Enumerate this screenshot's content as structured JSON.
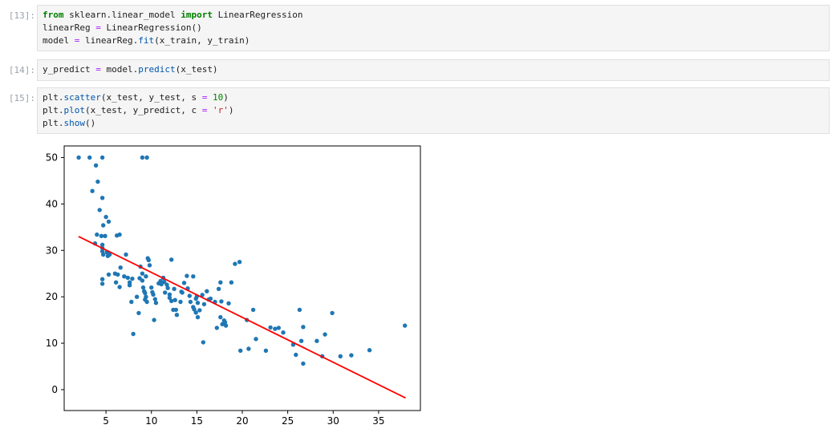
{
  "cells": [
    {
      "prompt": "[13]:",
      "lines": [
        [
          [
            "kw",
            "from"
          ],
          [
            "t",
            " sklearn.linear_model "
          ],
          [
            "kw",
            "import"
          ],
          [
            "t",
            " LinearRegression"
          ]
        ],
        [
          [
            "t",
            "linearReg "
          ],
          [
            "op",
            "="
          ],
          [
            "t",
            " LinearRegression()"
          ]
        ],
        [
          [
            "t",
            "model "
          ],
          [
            "op",
            "="
          ],
          [
            "t",
            " linearReg."
          ],
          [
            "fn",
            "fit"
          ],
          [
            "t",
            "(x_train, y_train)"
          ]
        ]
      ]
    },
    {
      "prompt": "[14]:",
      "lines": [
        [
          [
            "t",
            "y_predict "
          ],
          [
            "op",
            "="
          ],
          [
            "t",
            " model."
          ],
          [
            "fn",
            "predict"
          ],
          [
            "t",
            "(x_test)"
          ]
        ]
      ]
    },
    {
      "prompt": "[15]:",
      "lines": [
        [
          [
            "t",
            "plt."
          ],
          [
            "fn",
            "scatter"
          ],
          [
            "t",
            "(x_test, y_test, s "
          ],
          [
            "op",
            "="
          ],
          [
            "t",
            " "
          ],
          [
            "num",
            "10"
          ],
          [
            "t",
            ")"
          ]
        ],
        [
          [
            "t",
            "plt."
          ],
          [
            "fn",
            "plot"
          ],
          [
            "t",
            "(x_test, y_predict, c "
          ],
          [
            "op",
            "="
          ],
          [
            "t",
            " "
          ],
          [
            "str",
            "'r'"
          ],
          [
            "t",
            ")"
          ]
        ],
        [
          [
            "t",
            "plt."
          ],
          [
            "fn",
            "show"
          ],
          [
            "t",
            "()"
          ]
        ]
      ]
    }
  ],
  "chart_data": {
    "type": "scatter",
    "xlim": [
      0.4,
      39.6
    ],
    "ylim": [
      -4.5,
      52.5
    ],
    "xticks": [
      5,
      10,
      15,
      20,
      25,
      30,
      35
    ],
    "yticks": [
      0,
      10,
      20,
      30,
      40,
      50
    ],
    "grid": false,
    "colors": {
      "points": "#1f77b4",
      "line": "#ff0000"
    },
    "series": [
      {
        "kind": "scatter",
        "points": [
          [
            2,
            50
          ],
          [
            3.2,
            50
          ],
          [
            4.6,
            50
          ],
          [
            9,
            50
          ],
          [
            9.5,
            50
          ],
          [
            3.9,
            48.3
          ],
          [
            4.1,
            44.8
          ],
          [
            3.5,
            42.8
          ],
          [
            4.6,
            41.3
          ],
          [
            4.3,
            38.7
          ],
          [
            5,
            37.2
          ],
          [
            5.3,
            36.2
          ],
          [
            4.7,
            35.4
          ],
          [
            4,
            33.4
          ],
          [
            4.5,
            33.1
          ],
          [
            4.9,
            33.1
          ],
          [
            6.2,
            33.2
          ],
          [
            6.5,
            33.4
          ],
          [
            3.8,
            31.5
          ],
          [
            4.6,
            31.2
          ],
          [
            4.6,
            30.5
          ],
          [
            4.6,
            29.8
          ],
          [
            5.1,
            29.6
          ],
          [
            4.7,
            29.1
          ],
          [
            5.2,
            28.8
          ],
          [
            5.4,
            29.1
          ],
          [
            7.2,
            29.1
          ],
          [
            4.6,
            23.8
          ],
          [
            4.6,
            22.8
          ],
          [
            5.3,
            24.8
          ],
          [
            6,
            25
          ],
          [
            6.3,
            24.8
          ],
          [
            6.1,
            23.1
          ],
          [
            6.5,
            22.1
          ],
          [
            6.6,
            26.3
          ],
          [
            7,
            24.4
          ],
          [
            7.4,
            24.1
          ],
          [
            7.6,
            23.1
          ],
          [
            7.6,
            22.5
          ],
          [
            7.9,
            23.9
          ],
          [
            7.8,
            18.9
          ],
          [
            8,
            12
          ],
          [
            8.4,
            20
          ],
          [
            8.6,
            16.5
          ],
          [
            8.7,
            24
          ],
          [
            8.8,
            26.5
          ],
          [
            9,
            25
          ],
          [
            9,
            23.5
          ],
          [
            9.1,
            22
          ],
          [
            9.2,
            21.2
          ],
          [
            9.3,
            20.8
          ],
          [
            9.4,
            20
          ],
          [
            9.3,
            19.4
          ],
          [
            9.5,
            18.9
          ],
          [
            9.6,
            28.3
          ],
          [
            9.7,
            27.9
          ],
          [
            9.8,
            26.8
          ],
          [
            9.4,
            24.4
          ],
          [
            10,
            22
          ],
          [
            10.1,
            21
          ],
          [
            10.2,
            20.5
          ],
          [
            10.3,
            15
          ],
          [
            10.4,
            19.5
          ],
          [
            10.5,
            18.7
          ],
          [
            10.8,
            22.9
          ],
          [
            11,
            23.4
          ],
          [
            11.1,
            22.7
          ],
          [
            11.3,
            24.1
          ],
          [
            11.4,
            23.2
          ],
          [
            11.7,
            22.6
          ],
          [
            11.8,
            21.9
          ],
          [
            11.5,
            20.9
          ],
          [
            12,
            20.5
          ],
          [
            12,
            19.8
          ],
          [
            12.2,
            19.1
          ],
          [
            12.2,
            28
          ],
          [
            12.5,
            21.7
          ],
          [
            12.6,
            19.3
          ],
          [
            12.4,
            17.2
          ],
          [
            12.7,
            17.2
          ],
          [
            12.8,
            16.1
          ],
          [
            13.2,
            18.9
          ],
          [
            13.3,
            21.1
          ],
          [
            13.4,
            20.9
          ],
          [
            13.6,
            23
          ],
          [
            13.9,
            24.5
          ],
          [
            14,
            21.8
          ],
          [
            14.2,
            20.2
          ],
          [
            14.3,
            18.9
          ],
          [
            14.6,
            17.8
          ],
          [
            14.7,
            17.3
          ],
          [
            14.9,
            16.6
          ],
          [
            14.6,
            24.4
          ],
          [
            14.9,
            19.6
          ],
          [
            15,
            20.1
          ],
          [
            15.1,
            18.7
          ],
          [
            15.1,
            15.6
          ],
          [
            15.3,
            17.1
          ],
          [
            15.6,
            20.4
          ],
          [
            15.8,
            18.4
          ],
          [
            15.7,
            10.2
          ],
          [
            16.1,
            21.2
          ],
          [
            16.3,
            19.4
          ],
          [
            16.5,
            19.6
          ],
          [
            17,
            18.9
          ],
          [
            17.2,
            13.3
          ],
          [
            17.4,
            21.7
          ],
          [
            17.6,
            23.1
          ],
          [
            17.7,
            19
          ],
          [
            17.6,
            15.6
          ],
          [
            17.8,
            14.1
          ],
          [
            18,
            14.9
          ],
          [
            18.1,
            14.5
          ],
          [
            18.2,
            13.8
          ],
          [
            18.5,
            18.6
          ],
          [
            18.8,
            23.1
          ],
          [
            19.2,
            27.1
          ],
          [
            19.7,
            27.5
          ],
          [
            19.8,
            8.4
          ],
          [
            20.5,
            15
          ],
          [
            20.7,
            8.8
          ],
          [
            21.2,
            17.2
          ],
          [
            21.5,
            10.9
          ],
          [
            22.6,
            8.4
          ],
          [
            23.1,
            13.4
          ],
          [
            23.6,
            13.1
          ],
          [
            24,
            13.3
          ],
          [
            24.5,
            12.3
          ],
          [
            25.6,
            9.7
          ],
          [
            25.9,
            7.5
          ],
          [
            26.3,
            17.2
          ],
          [
            26.5,
            10.5
          ],
          [
            26.7,
            13.5
          ],
          [
            26.7,
            5.6
          ],
          [
            28.2,
            10.5
          ],
          [
            28.8,
            7.2
          ],
          [
            29.1,
            11.9
          ],
          [
            29.9,
            16.5
          ],
          [
            30.8,
            7.2
          ],
          [
            32,
            7.4
          ],
          [
            34,
            8.5
          ],
          [
            37.9,
            13.8
          ]
        ]
      },
      {
        "kind": "line",
        "x": [
          1.98,
          37.97
        ],
        "y": [
          33.0,
          -1.8
        ]
      }
    ]
  }
}
